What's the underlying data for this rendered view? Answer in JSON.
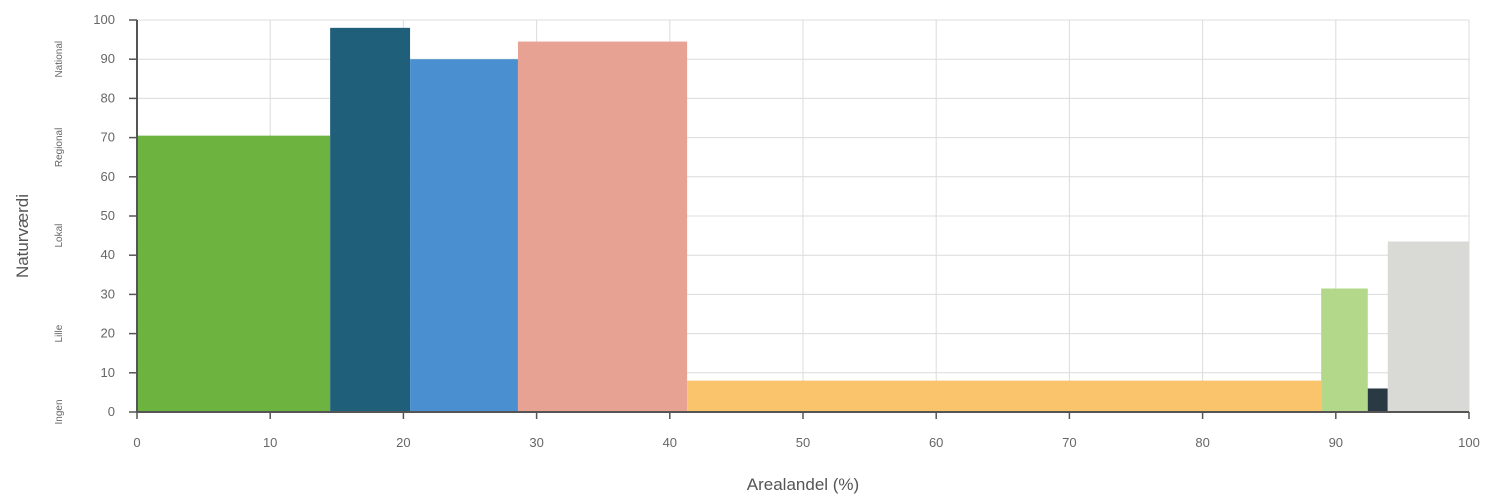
{
  "chart_data": {
    "type": "bar",
    "title": "",
    "xlabel": "Arealandel (%)",
    "ylabel": "Naturværdi",
    "xlim": [
      0,
      100
    ],
    "ylim": [
      0,
      100
    ],
    "x_ticks": [
      0,
      10,
      20,
      30,
      40,
      50,
      60,
      70,
      80,
      90,
      100
    ],
    "y_ticks": [
      0,
      10,
      20,
      30,
      40,
      50,
      60,
      70,
      80,
      90,
      100
    ],
    "grid": true,
    "value_bands": [
      {
        "label": "Ingen",
        "from": -5,
        "to": 5
      },
      {
        "label": "Lille",
        "from": 5,
        "to": 35
      },
      {
        "label": "Lokal",
        "from": 35,
        "to": 55
      },
      {
        "label": "Regional",
        "from": 55,
        "to": 80
      },
      {
        "label": "National",
        "from": 80,
        "to": 100
      }
    ],
    "bars": [
      {
        "x0": 0,
        "x1": 14.5,
        "value": 70.5,
        "color": "#6db33f"
      },
      {
        "x0": 14.5,
        "x1": 20.5,
        "value": 98,
        "color": "#1f5f7a"
      },
      {
        "x0": 20.5,
        "x1": 28.6,
        "value": 90,
        "color": "#4a90d0"
      },
      {
        "x0": 28.6,
        "x1": 41.3,
        "value": 94.5,
        "color": "#e8a294"
      },
      {
        "x0": 41.3,
        "x1": 88.9,
        "value": 8,
        "color": "#f9c46b"
      },
      {
        "x0": 88.9,
        "x1": 92.4,
        "value": 31.5,
        "color": "#b3d88a"
      },
      {
        "x0": 92.4,
        "x1": 93.9,
        "value": 6,
        "color": "#2a3a45"
      },
      {
        "x0": 93.9,
        "x1": 100,
        "value": 43.5,
        "color": "#d9d9d6"
      }
    ]
  }
}
